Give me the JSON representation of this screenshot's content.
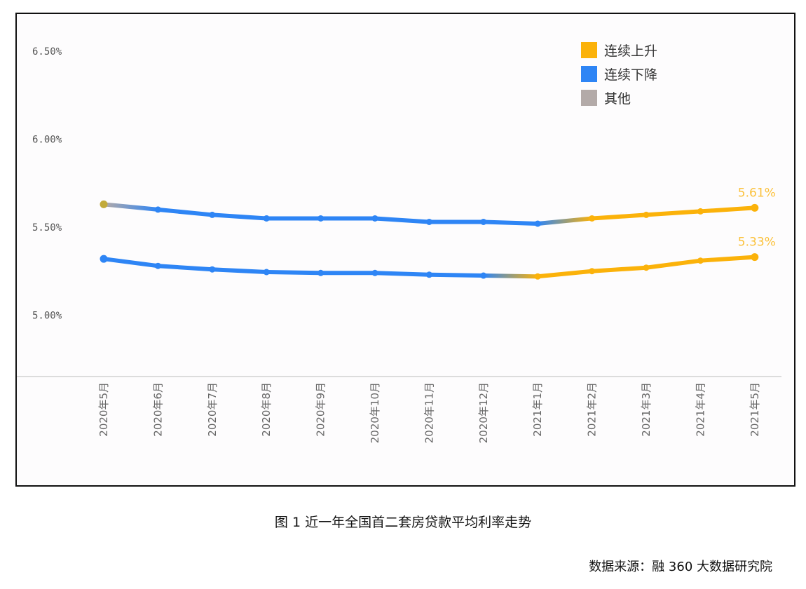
{
  "chart_data": {
    "type": "line",
    "categories": [
      "2020年5月",
      "2020年6月",
      "2020年7月",
      "2020年8月",
      "2020年9月",
      "2020年10月",
      "2020年11月",
      "2020年12月",
      "2021年1月",
      "2021年2月",
      "2021年3月",
      "2021年4月",
      "2021年5月"
    ],
    "series": [
      {
        "values": [
          5.63,
          5.6,
          5.57,
          5.55,
          5.55,
          5.55,
          5.53,
          5.53,
          5.52,
          5.55,
          5.57,
          5.59,
          5.61
        ],
        "trend": [
          "other",
          "down",
          "down",
          "down",
          "down",
          "down",
          "down",
          "down",
          "down",
          "up",
          "up",
          "up",
          "up"
        ],
        "end_label": "5.61%"
      },
      {
        "values": [
          5.32,
          5.28,
          5.26,
          5.245,
          5.24,
          5.24,
          5.23,
          5.225,
          5.22,
          5.25,
          5.27,
          5.31,
          5.33
        ],
        "trend": [
          "down",
          "down",
          "down",
          "down",
          "down",
          "down",
          "down",
          "down",
          "up",
          "up",
          "up",
          "up",
          "up"
        ],
        "end_label": "5.33%"
      }
    ],
    "yticks": [
      "6.50%",
      "6.00%",
      "5.50%",
      "5.00%"
    ],
    "ytick_values": [
      6.5,
      6.0,
      5.5,
      5.0
    ],
    "ylim": [
      4.65,
      6.6
    ],
    "grid": false,
    "legend_position": "top-right",
    "legend": [
      {
        "key": "up",
        "label": "连续上升",
        "color": "#fbb20a"
      },
      {
        "key": "down",
        "label": "连续下降",
        "color": "#2e85f5"
      },
      {
        "key": "other",
        "label": "其他",
        "color": "#b3aaa8"
      }
    ]
  },
  "caption": "图 1  近一年全国首二套房贷款平均利率走势",
  "source": "数据来源：融 360 大数据研究院"
}
